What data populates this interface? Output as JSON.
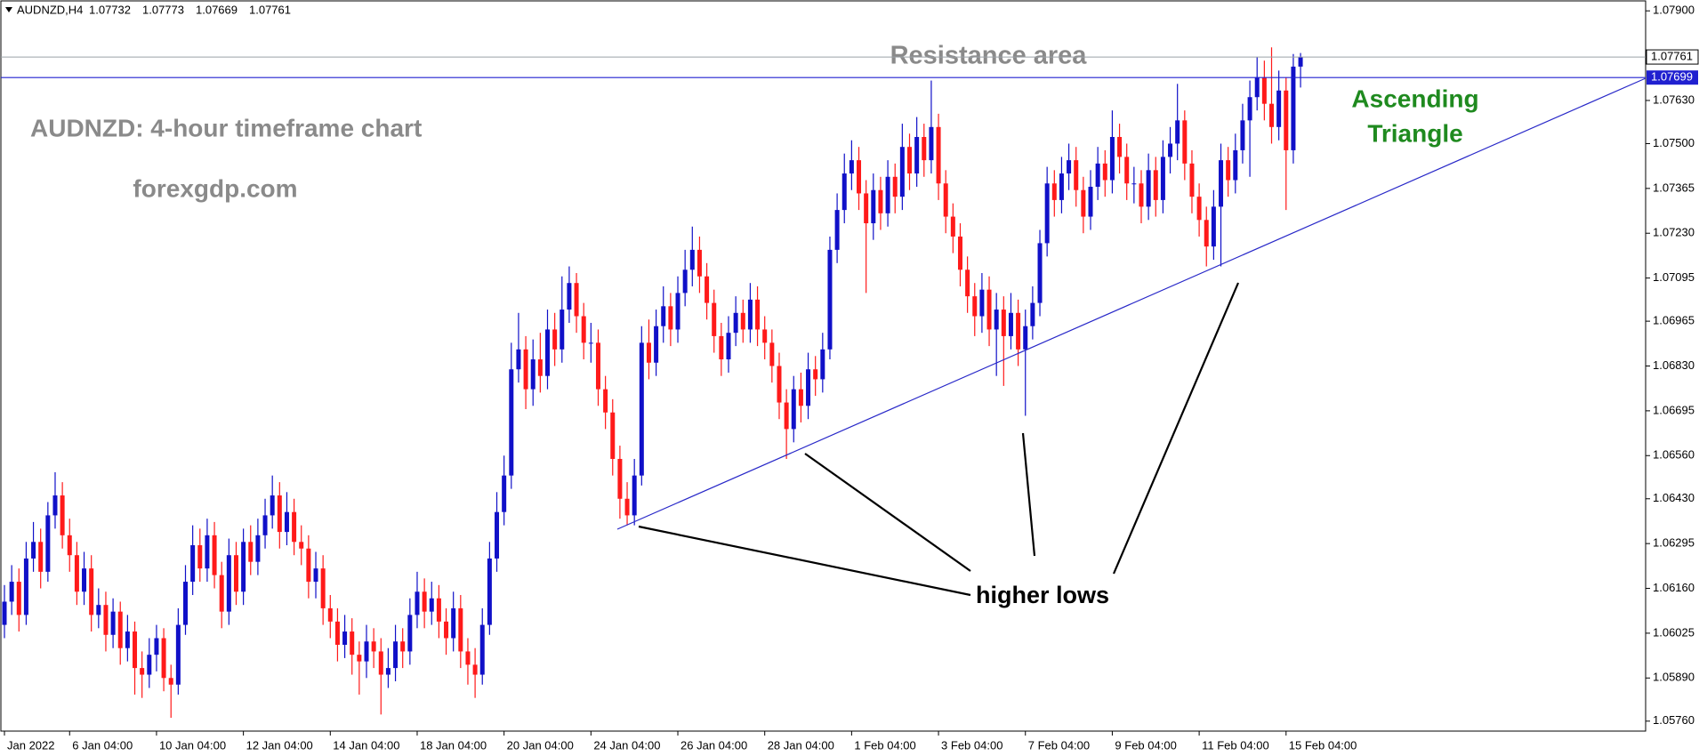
{
  "chart_data": {
    "type": "candlestick",
    "symbol": "AUDNZD,H4",
    "up_color": "#1010c8",
    "down_color": "#ff1a1a",
    "categories": [
      "Jan 2022",
      null,
      null,
      null,
      null,
      null,
      null,
      null,
      null,
      "6 Jan 04:00",
      null,
      null,
      null,
      null,
      null,
      null,
      null,
      null,
      null,
      null,
      null,
      "10 Jan 04:00",
      null,
      null,
      null,
      null,
      null,
      null,
      null,
      null,
      null,
      null,
      null,
      "12 Jan 04:00",
      null,
      null,
      null,
      null,
      null,
      null,
      null,
      null,
      null,
      null,
      null,
      "14 Jan 04:00",
      null,
      null,
      null,
      null,
      null,
      null,
      null,
      null,
      null,
      null,
      null,
      "18 Jan 04:00",
      null,
      null,
      null,
      null,
      null,
      null,
      null,
      null,
      null,
      null,
      null,
      "20 Jan 04:00",
      null,
      null,
      null,
      null,
      null,
      null,
      null,
      null,
      null,
      null,
      null,
      "24 Jan 04:00",
      null,
      null,
      null,
      null,
      null,
      null,
      null,
      null,
      null,
      null,
      null,
      "26 Jan 04:00",
      null,
      null,
      null,
      null,
      null,
      null,
      null,
      null,
      null,
      null,
      null,
      "28 Jan 04:00",
      null,
      null,
      null,
      null,
      null,
      null,
      null,
      null,
      null,
      null,
      null,
      "1 Feb 04:00",
      null,
      null,
      null,
      null,
      null,
      null,
      null,
      null,
      null,
      null,
      null,
      "3 Feb 04:00",
      null,
      null,
      null,
      null,
      null,
      null,
      null,
      null,
      null,
      null,
      null,
      "7 Feb 04:00",
      null,
      null,
      null,
      null,
      null,
      null,
      null,
      null,
      null,
      null,
      null,
      "9 Feb 04:00",
      null,
      null,
      null,
      null,
      null,
      null,
      null,
      null,
      null,
      null,
      null,
      "11 Feb 04:00",
      null,
      null,
      null,
      null,
      null,
      null,
      null,
      null,
      null,
      null,
      null,
      "15 Feb 04:00",
      null,
      null
    ],
    "open": [
      1.0605,
      1.0612,
      1.0618,
      1.0608,
      1.0625,
      1.063,
      1.0621,
      1.0638,
      1.0644,
      1.0632,
      1.0626,
      1.0615,
      1.0622,
      1.0608,
      1.0611,
      1.0602,
      1.0609,
      1.0598,
      1.0603,
      1.0592,
      1.059,
      1.0596,
      1.0601,
      1.0589,
      1.0587,
      1.0605,
      1.0618,
      1.0629,
      1.0622,
      1.0632,
      1.062,
      1.0609,
      1.0626,
      1.0615,
      1.063,
      1.0624,
      1.0632,
      1.0638,
      1.0644,
      1.0633,
      1.0639,
      1.063,
      1.0628,
      1.0618,
      1.0622,
      1.061,
      1.0606,
      1.0599,
      1.0603,
      1.0596,
      1.0594,
      1.06,
      1.0597,
      1.059,
      1.0592,
      1.06,
      1.0597,
      1.0608,
      1.0615,
      1.0609,
      1.0613,
      1.0606,
      1.0601,
      1.061,
      1.0597,
      1.0593,
      1.059,
      1.0605,
      1.0625,
      1.0639,
      1.065,
      1.0682,
      1.0688,
      1.0676,
      1.0685,
      1.068,
      1.0694,
      1.0688,
      1.07,
      1.0708,
      1.0698,
      1.069,
      1.069,
      1.0676,
      1.0669,
      1.0655,
      1.0643,
      1.0638,
      1.065,
      1.069,
      1.0684,
      1.0695,
      1.0701,
      1.0694,
      1.0705,
      1.0712,
      1.0718,
      1.071,
      1.0702,
      1.0692,
      1.0685,
      1.0693,
      1.0699,
      1.0694,
      1.0703,
      1.0694,
      1.069,
      1.0683,
      1.0672,
      1.0664,
      1.0676,
      1.0671,
      1.0682,
      1.0679,
      1.0688,
      1.0718,
      1.073,
      1.0741,
      1.0745,
      1.0735,
      1.0726,
      1.0736,
      1.0729,
      1.074,
      1.0734,
      1.0749,
      1.0741,
      1.0752,
      1.0745,
      1.0755,
      1.0738,
      1.0728,
      1.0722,
      1.0712,
      1.0704,
      1.0698,
      1.0706,
      1.0694,
      1.07,
      1.0692,
      1.0699,
      1.0688,
      1.0695,
      1.0702,
      1.072,
      1.0738,
      1.0733,
      1.0741,
      1.0745,
      1.0736,
      1.0728,
      1.0737,
      1.0744,
      1.0739,
      1.0752,
      1.0746,
      1.0738,
      1.0738,
      1.0731,
      1.0742,
      1.0733,
      1.0746,
      1.075,
      1.0757,
      1.0744,
      1.0734,
      1.0727,
      1.0719,
      1.0731,
      1.0745,
      1.0739,
      1.0748,
      1.0757,
      1.0764,
      1.077,
      1.0762,
      1.0755,
      1.0766,
      1.0748,
      1.07732
    ],
    "high": [
      1.0617,
      1.0623,
      1.0622,
      1.063,
      1.0636,
      1.0634,
      1.0642,
      1.0651,
      1.0648,
      1.0637,
      1.063,
      1.0627,
      1.0626,
      1.0616,
      1.0615,
      1.0613,
      1.0612,
      1.0608,
      1.0606,
      1.0597,
      1.0601,
      1.0605,
      1.0604,
      1.0593,
      1.061,
      1.0623,
      1.0635,
      1.0634,
      1.0637,
      1.0636,
      1.0624,
      1.0631,
      1.063,
      1.0634,
      1.0635,
      1.0637,
      1.0643,
      1.065,
      1.0648,
      1.0645,
      1.0643,
      1.0635,
      1.0632,
      1.0627,
      1.0626,
      1.0614,
      1.061,
      1.0608,
      1.0607,
      1.06,
      1.0605,
      1.0604,
      1.0601,
      1.0598,
      1.0605,
      1.0604,
      1.0613,
      1.0621,
      1.0619,
      1.0618,
      1.0617,
      1.061,
      1.0615,
      1.0614,
      1.0601,
      1.0598,
      1.061,
      1.063,
      1.0645,
      1.0656,
      1.069,
      1.0699,
      1.0692,
      1.0691,
      1.0693,
      1.07,
      1.0699,
      1.071,
      1.0713,
      1.0711,
      1.0702,
      1.0696,
      1.0694,
      1.068,
      1.0673,
      1.0659,
      1.0648,
      1.0655,
      1.0695,
      1.0697,
      1.07,
      1.0707,
      1.0705,
      1.071,
      1.0718,
      1.0725,
      1.0722,
      1.0714,
      1.0706,
      1.0696,
      1.0698,
      1.0704,
      1.0703,
      1.0708,
      1.0707,
      1.0698,
      1.0694,
      1.0687,
      1.0676,
      1.068,
      1.0681,
      1.0687,
      1.0686,
      1.0693,
      1.0722,
      1.0735,
      1.0747,
      1.0751,
      1.0749,
      1.0739,
      1.0741,
      1.074,
      1.0745,
      1.0744,
      1.0756,
      1.0753,
      1.0758,
      1.0756,
      1.0769,
      1.0759,
      1.0742,
      1.0732,
      1.0726,
      1.0716,
      1.0708,
      1.0711,
      1.071,
      1.0705,
      1.0704,
      1.0705,
      1.0703,
      1.07,
      1.0707,
      1.0724,
      1.0743,
      1.0742,
      1.0746,
      1.075,
      1.0749,
      1.074,
      1.0742,
      1.0749,
      1.0748,
      1.076,
      1.0756,
      1.075,
      1.0743,
      1.0742,
      1.0747,
      1.0746,
      1.0751,
      1.0755,
      1.0768,
      1.076,
      1.0748,
      1.0738,
      1.0731,
      1.0736,
      1.075,
      1.0749,
      1.0753,
      1.0762,
      1.0769,
      1.0776,
      1.0775,
      1.0779,
      1.0772,
      1.077,
      1.0777,
      1.07773
    ],
    "low": [
      1.0601,
      1.0608,
      1.0603,
      1.0605,
      1.0621,
      1.0616,
      1.0618,
      1.0634,
      1.0628,
      1.0621,
      1.0611,
      1.0611,
      1.0603,
      1.0604,
      1.0597,
      1.0598,
      1.0593,
      1.0594,
      1.0584,
      1.0583,
      1.0586,
      1.0591,
      1.0585,
      1.0577,
      1.0584,
      1.0602,
      1.0614,
      1.0618,
      1.0618,
      1.0616,
      1.0604,
      1.0605,
      1.0611,
      1.0611,
      1.062,
      1.062,
      1.0628,
      1.0634,
      1.0628,
      1.0629,
      1.0626,
      1.0623,
      1.0613,
      1.0613,
      1.0605,
      1.0601,
      1.0594,
      1.0595,
      1.059,
      1.0584,
      1.0589,
      1.0592,
      1.0578,
      1.0586,
      1.0588,
      1.0592,
      1.0593,
      1.0604,
      1.0604,
      1.0605,
      1.0601,
      1.0596,
      1.0597,
      1.0592,
      1.0587,
      1.0583,
      1.0587,
      1.0602,
      1.0621,
      1.0635,
      1.0646,
      1.0678,
      1.067,
      1.0671,
      1.0675,
      1.0676,
      1.0683,
      1.0684,
      1.0696,
      1.0693,
      1.0685,
      1.0684,
      1.0671,
      1.0664,
      1.065,
      1.0637,
      1.0635,
      1.0635,
      1.0647,
      1.0679,
      1.068,
      1.069,
      1.0689,
      1.069,
      1.0701,
      1.0707,
      1.0705,
      1.0697,
      1.0687,
      1.068,
      1.0681,
      1.0689,
      1.069,
      1.069,
      1.0689,
      1.0685,
      1.0678,
      1.0667,
      1.0655,
      1.066,
      1.0666,
      1.0667,
      1.0674,
      1.0675,
      1.0685,
      1.0714,
      1.0726,
      1.0736,
      1.073,
      1.0705,
      1.0721,
      1.0724,
      1.0725,
      1.0729,
      1.073,
      1.0736,
      1.0737,
      1.074,
      1.0741,
      1.0733,
      1.0723,
      1.0717,
      1.0707,
      1.0699,
      1.0692,
      1.0693,
      1.0689,
      1.068,
      1.0677,
      1.0688,
      1.0683,
      1.0668,
      1.0691,
      1.0698,
      1.0716,
      1.0728,
      1.0729,
      1.0736,
      1.0731,
      1.0723,
      1.0724,
      1.0733,
      1.0734,
      1.0735,
      1.0741,
      1.0733,
      1.0732,
      1.0726,
      1.0727,
      1.0728,
      1.0729,
      1.0741,
      1.0745,
      1.0739,
      1.0729,
      1.0722,
      1.0713,
      1.0715,
      1.0713,
      1.0734,
      1.0735,
      1.0744,
      1.074,
      1.076,
      1.0757,
      1.075,
      1.0751,
      1.073,
      1.0744,
      1.07669
    ],
    "close": [
      1.0612,
      1.0618,
      1.0608,
      1.0625,
      1.063,
      1.0621,
      1.0638,
      1.0644,
      1.0632,
      1.0626,
      1.0615,
      1.0622,
      1.0608,
      1.0611,
      1.0602,
      1.0609,
      1.0598,
      1.0603,
      1.0592,
      1.059,
      1.0596,
      1.0601,
      1.0589,
      1.0587,
      1.0605,
      1.0618,
      1.0629,
      1.0622,
      1.0632,
      1.062,
      1.0609,
      1.0626,
      1.0615,
      1.063,
      1.0624,
      1.0632,
      1.0638,
      1.0644,
      1.0633,
      1.0639,
      1.063,
      1.0628,
      1.0618,
      1.0622,
      1.061,
      1.0606,
      1.0599,
      1.0603,
      1.0596,
      1.0594,
      1.06,
      1.0597,
      1.059,
      1.0592,
      1.06,
      1.0597,
      1.0608,
      1.0615,
      1.0609,
      1.0613,
      1.0606,
      1.0601,
      1.061,
      1.0597,
      1.0593,
      1.059,
      1.0605,
      1.0625,
      1.0639,
      1.065,
      1.0682,
      1.0688,
      1.0676,
      1.0685,
      1.068,
      1.0694,
      1.0688,
      1.07,
      1.0708,
      1.0698,
      1.069,
      1.069,
      1.0676,
      1.0669,
      1.0655,
      1.0643,
      1.0638,
      1.065,
      1.069,
      1.0684,
      1.0695,
      1.0701,
      1.0694,
      1.0705,
      1.0712,
      1.0718,
      1.071,
      1.0702,
      1.0692,
      1.0685,
      1.0693,
      1.0699,
      1.0694,
      1.0703,
      1.0694,
      1.069,
      1.0683,
      1.0672,
      1.0664,
      1.0676,
      1.0671,
      1.0682,
      1.0679,
      1.0688,
      1.0718,
      1.073,
      1.0741,
      1.0745,
      1.0735,
      1.0726,
      1.0736,
      1.0729,
      1.074,
      1.0734,
      1.0749,
      1.0741,
      1.0752,
      1.0745,
      1.0755,
      1.0738,
      1.0728,
      1.0722,
      1.0712,
      1.0704,
      1.0698,
      1.0706,
      1.0694,
      1.07,
      1.0692,
      1.0699,
      1.0688,
      1.0695,
      1.0702,
      1.072,
      1.0738,
      1.0733,
      1.0741,
      1.0745,
      1.0736,
      1.0728,
      1.0737,
      1.0744,
      1.0739,
      1.0752,
      1.0746,
      1.0738,
      1.0738,
      1.0731,
      1.0742,
      1.0733,
      1.0746,
      1.075,
      1.0757,
      1.0744,
      1.0734,
      1.0727,
      1.0719,
      1.0731,
      1.0745,
      1.0739,
      1.0748,
      1.0757,
      1.0764,
      1.077,
      1.0762,
      1.0755,
      1.0766,
      1.0748,
      1.07732,
      1.07761
    ],
    "ylim": [
      1.0573,
      1.0793
    ],
    "yticks": [
      {
        "value": 1.079,
        "label": "1.07900"
      },
      {
        "value": 1.0763,
        "label": "1.07630"
      },
      {
        "value": 1.075,
        "label": "1.07500"
      },
      1.07365,
      {
        "value": 1.0723,
        "label": "1.07230"
      },
      1.07095,
      1.06965,
      {
        "value": 1.0683,
        "label": "1.06830"
      },
      1.06695,
      {
        "value": 1.0656,
        "label": "1.06560"
      },
      {
        "value": 1.0643,
        "label": "1.06430"
      },
      1.06295,
      {
        "value": 1.0616,
        "label": "1.06160"
      },
      1.06025,
      {
        "value": 1.0589,
        "label": "1.05890"
      },
      {
        "value": 1.0576,
        "label": "1.05760"
      }
    ],
    "last_price": 1.07761,
    "resistance_line": 1.07699,
    "resistance_color": "#2020d0",
    "annotations": {
      "resistance": "Resistance area",
      "heading": "AUDNZD: 4-hour timeframe chart",
      "source": "forexgdp.com",
      "pattern": [
        "Ascending",
        "Triangle"
      ],
      "lows": "higher lows"
    }
  }
}
